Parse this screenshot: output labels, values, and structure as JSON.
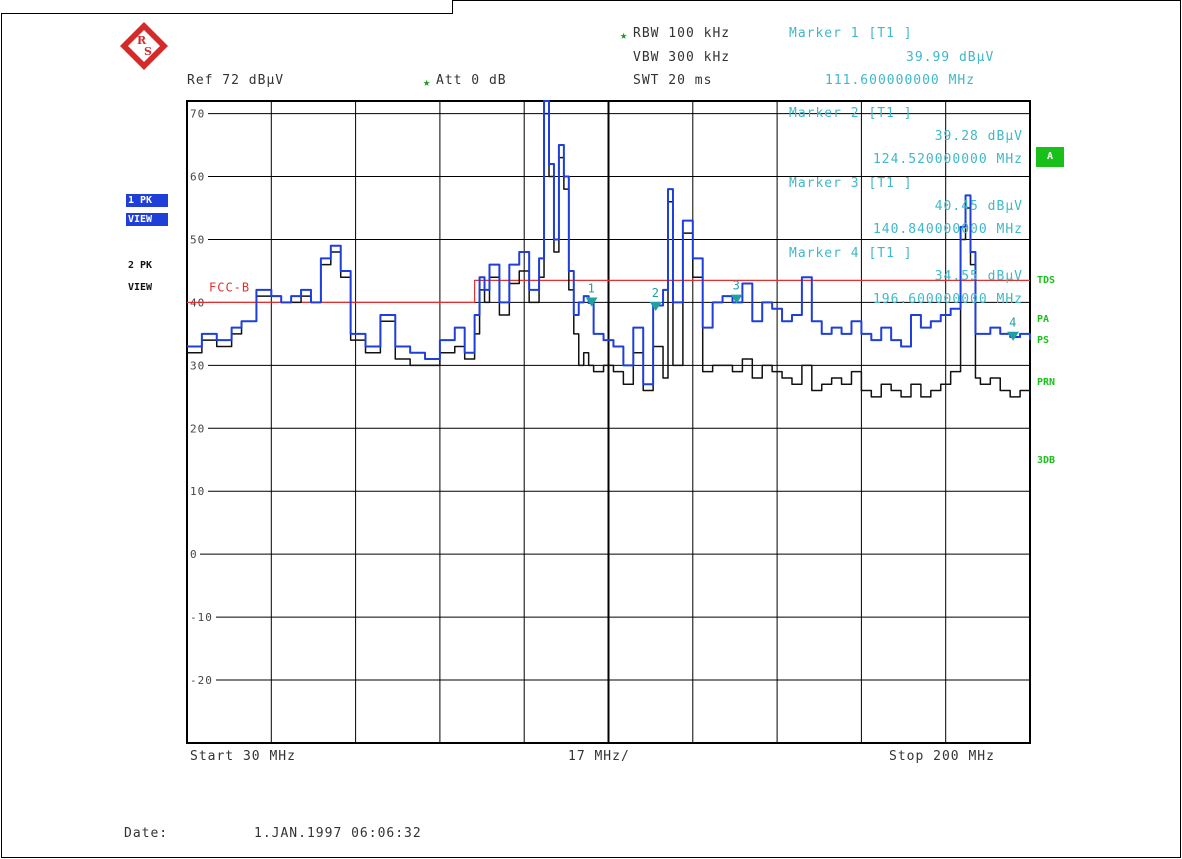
{
  "header": {
    "rbw": "RBW 100 kHz",
    "vbw": "VBW 300 kHz",
    "swt": "SWT 20 ms",
    "ref": "Ref  72 dBµV",
    "att": "Att  0 dB",
    "marker1_title": "Marker 1 [T1 ]",
    "marker1_level": "39.99 dBµV",
    "marker1_freq": "111.600000000 MHz"
  },
  "markers_overlay": [
    {
      "title": "Marker 2 [T1 ]",
      "level": "39.28 dBµV",
      "freq": "124.520000000 MHz"
    },
    {
      "title": "Marker 3 [T1 ]",
      "level": "40.45 dBµV",
      "freq": "140.840000000 MHz"
    },
    {
      "title": "Marker 4 [T1 ]",
      "level": "34.55 dBµV",
      "freq": "196.600000000 MHz"
    }
  ],
  "side_left": {
    "trace1": "1 PK",
    "view1": "VIEW",
    "trace2": "2 PK",
    "view2": "VIEW"
  },
  "side_right": {
    "a": "A",
    "tds": "TDS",
    "pa": "PA",
    "ps": "PS",
    "prn": "PRN",
    "3db": "3DB"
  },
  "footer": {
    "start": "Start 30 MHz",
    "span": "17 MHz/",
    "stop": "Stop 200 MHz",
    "date_label": "Date:",
    "date_value": "1.JAN.1997  06:06:32"
  },
  "colors": {
    "trace1": "#1f3fd8",
    "trace2": "#111111",
    "limit": "#e03030",
    "marker": "#20a0a0",
    "text": "#3fb8c8"
  },
  "chart_data": {
    "type": "line",
    "x_range": [
      30,
      200
    ],
    "ylim": [
      -30,
      72
    ],
    "y_ticks": [
      70,
      60,
      50,
      40,
      30,
      20,
      10,
      0,
      -10,
      -20
    ],
    "x_unit": "MHz",
    "y_unit": "dBµV",
    "grid": true,
    "limit_line": {
      "name": "FCC-B",
      "points": [
        [
          30,
          40
        ],
        [
          88,
          40
        ],
        [
          88,
          43.5
        ],
        [
          200,
          43.5
        ]
      ]
    },
    "series": [
      {
        "name": "1 PK",
        "x": [
          30,
          33,
          36,
          39,
          41,
          44,
          47,
          49,
          51,
          53,
          55,
          57,
          59,
          61,
          63,
          66,
          69,
          72,
          75,
          78,
          81,
          84,
          86,
          88,
          89,
          90,
          91,
          93,
          95,
          97,
          99,
          101,
          102,
          103,
          104,
          105,
          106,
          107,
          108,
          109,
          110,
          111,
          112,
          114,
          116,
          118,
          120,
          122,
          124,
          126,
          127,
          128,
          130,
          132,
          134,
          136,
          138,
          140,
          142,
          144,
          146,
          148,
          150,
          152,
          154,
          156,
          158,
          160,
          162,
          164,
          166,
          168,
          170,
          172,
          174,
          176,
          178,
          180,
          182,
          184,
          186,
          187,
          188,
          189,
          190,
          192,
          194,
          196,
          198,
          200
        ],
        "y": [
          33,
          35,
          34,
          36,
          37,
          42,
          41,
          40,
          41,
          42,
          40,
          47,
          49,
          45,
          35,
          33,
          38,
          33,
          32,
          31,
          34,
          36,
          32,
          38,
          44,
          42,
          46,
          40,
          46,
          48,
          42,
          47,
          72,
          62,
          50,
          65,
          60,
          45,
          38,
          40,
          41,
          39.9,
          35,
          34,
          33,
          30,
          36,
          27,
          39.5,
          42,
          58,
          40,
          53,
          47,
          36,
          40,
          41,
          40,
          43,
          37,
          40,
          39,
          37,
          38,
          44,
          37,
          35,
          36,
          35,
          37,
          35,
          34,
          36,
          34,
          33,
          38,
          36,
          37,
          38,
          39,
          52,
          57,
          48,
          35,
          35,
          36,
          35,
          34.5,
          35,
          34
        ]
      },
      {
        "name": "2 PK",
        "x": [
          30,
          33,
          36,
          39,
          41,
          44,
          47,
          49,
          51,
          53,
          55,
          57,
          59,
          61,
          63,
          66,
          69,
          72,
          75,
          78,
          81,
          84,
          86,
          88,
          89,
          90,
          91,
          93,
          95,
          97,
          99,
          101,
          102,
          103,
          104,
          105,
          106,
          107,
          108,
          109,
          110,
          111,
          112,
          114,
          116,
          118,
          120,
          122,
          124,
          126,
          127,
          128,
          130,
          132,
          134,
          136,
          138,
          140,
          142,
          144,
          146,
          148,
          150,
          152,
          154,
          156,
          158,
          160,
          162,
          164,
          166,
          168,
          170,
          172,
          174,
          176,
          178,
          180,
          182,
          184,
          186,
          187,
          188,
          189,
          190,
          192,
          194,
          196,
          198,
          200
        ],
        "y": [
          32,
          34,
          33,
          35,
          37,
          41,
          41,
          40,
          40,
          41,
          40,
          46,
          48,
          44,
          34,
          32,
          37,
          31,
          30,
          30,
          32,
          33,
          31,
          35,
          42,
          40,
          44,
          38,
          43,
          45,
          40,
          44,
          70,
          60,
          48,
          63,
          58,
          42,
          35,
          30,
          32,
          30,
          29,
          30,
          29,
          27,
          32,
          26,
          33,
          28,
          56,
          30,
          51,
          44,
          29,
          30,
          30,
          29,
          31,
          28,
          30,
          29,
          28,
          27,
          30,
          26,
          27,
          28,
          27,
          29,
          26,
          25,
          27,
          26,
          25,
          27,
          25,
          26,
          27,
          29,
          50,
          55,
          46,
          28,
          27,
          28,
          26,
          25,
          26,
          25
        ]
      }
    ],
    "markers": [
      {
        "label": "1",
        "x": 111.6,
        "y": 39.99
      },
      {
        "label": "2",
        "x": 124.52,
        "y": 39.28
      },
      {
        "label": "3",
        "x": 140.84,
        "y": 40.45
      },
      {
        "label": "4",
        "x": 196.6,
        "y": 34.55
      }
    ]
  }
}
